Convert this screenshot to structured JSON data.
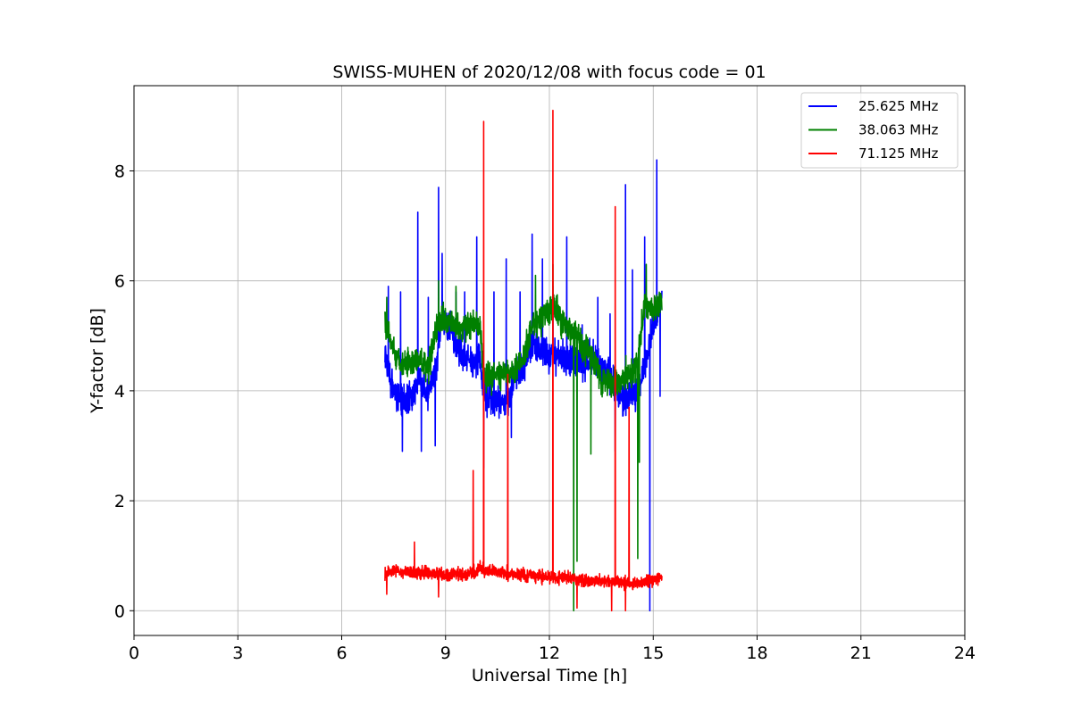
{
  "chart_data": {
    "type": "line",
    "title": "SWISS-MUHEN of 2020/12/08 with focus code = 01",
    "xlabel": "Universal Time [h]",
    "ylabel": "Y-factor [dB]",
    "xlim": [
      0,
      24
    ],
    "ylim": [
      -0.45,
      9.55
    ],
    "xticks": [
      0,
      3,
      6,
      9,
      12,
      15,
      18,
      21,
      24
    ],
    "yticks": [
      0,
      2,
      4,
      6,
      8
    ],
    "grid": true,
    "legend_position": "top-right",
    "series": [
      {
        "name": "25.625 MHz",
        "color": "#0000ff",
        "noise": 0.45,
        "points": [
          [
            7.25,
            4.6
          ],
          [
            7.5,
            4.0
          ],
          [
            7.75,
            3.8
          ],
          [
            8.0,
            3.9
          ],
          [
            8.25,
            4.2
          ],
          [
            8.5,
            3.9
          ],
          [
            8.75,
            4.5
          ],
          [
            8.9,
            5.4
          ],
          [
            9.25,
            5.0
          ],
          [
            9.5,
            4.6
          ],
          [
            9.75,
            4.5
          ],
          [
            10.0,
            4.6
          ],
          [
            10.1,
            3.9
          ],
          [
            10.5,
            3.8
          ],
          [
            10.8,
            3.8
          ],
          [
            11.0,
            4.3
          ],
          [
            11.25,
            4.4
          ],
          [
            11.5,
            4.9
          ],
          [
            11.75,
            4.7
          ],
          [
            12.0,
            4.6
          ],
          [
            12.25,
            4.7
          ],
          [
            12.5,
            4.5
          ],
          [
            12.75,
            4.6
          ],
          [
            13.0,
            4.5
          ],
          [
            13.25,
            4.6
          ],
          [
            13.5,
            4.4
          ],
          [
            13.75,
            4.3
          ],
          [
            14.0,
            3.9
          ],
          [
            14.25,
            3.8
          ],
          [
            14.5,
            4.0
          ],
          [
            14.75,
            4.4
          ],
          [
            15.0,
            5.3
          ],
          [
            15.25,
            5.6
          ]
        ],
        "spikes": [
          [
            7.35,
            5.9
          ],
          [
            7.7,
            5.8
          ],
          [
            8.2,
            7.25
          ],
          [
            8.5,
            5.7
          ],
          [
            8.8,
            7.7
          ],
          [
            8.9,
            6.5
          ],
          [
            9.3,
            5.8
          ],
          [
            9.55,
            5.8
          ],
          [
            9.9,
            6.8
          ],
          [
            10.1,
            8.35
          ],
          [
            10.4,
            5.8
          ],
          [
            10.75,
            6.4
          ],
          [
            11.15,
            5.8
          ],
          [
            11.5,
            6.85
          ],
          [
            11.8,
            6.4
          ],
          [
            12.1,
            5.9
          ],
          [
            12.5,
            6.8
          ],
          [
            12.95,
            5.2
          ],
          [
            13.4,
            5.7
          ],
          [
            13.75,
            5.4
          ],
          [
            14.2,
            7.75
          ],
          [
            14.4,
            6.2
          ],
          [
            14.75,
            6.8
          ],
          [
            15.1,
            8.2
          ],
          [
            15.2,
            7.1
          ]
        ],
        "dips": [
          [
            7.75,
            2.9
          ],
          [
            8.3,
            2.9
          ],
          [
            8.7,
            3.0
          ],
          [
            10.1,
            2.6
          ],
          [
            10.9,
            3.15
          ],
          [
            13.9,
            2.9
          ],
          [
            14.9,
            0.0
          ],
          [
            15.2,
            3.9
          ]
        ]
      },
      {
        "name": "38.063 MHz",
        "color": "#008000",
        "noise": 0.38,
        "points": [
          [
            7.25,
            5.3
          ],
          [
            7.5,
            4.7
          ],
          [
            7.75,
            4.5
          ],
          [
            8.0,
            4.5
          ],
          [
            8.25,
            4.6
          ],
          [
            8.5,
            4.4
          ],
          [
            8.75,
            5.2
          ],
          [
            9.0,
            5.3
          ],
          [
            9.25,
            5.2
          ],
          [
            9.5,
            5.1
          ],
          [
            9.75,
            5.2
          ],
          [
            10.0,
            5.2
          ],
          [
            10.1,
            4.2
          ],
          [
            10.5,
            4.3
          ],
          [
            10.8,
            4.3
          ],
          [
            11.0,
            4.4
          ],
          [
            11.25,
            4.6
          ],
          [
            11.5,
            5.2
          ],
          [
            11.75,
            5.3
          ],
          [
            12.0,
            5.5
          ],
          [
            12.25,
            5.4
          ],
          [
            12.5,
            5.1
          ],
          [
            12.75,
            5.0
          ],
          [
            13.0,
            4.8
          ],
          [
            13.25,
            4.6
          ],
          [
            13.5,
            4.2
          ],
          [
            13.75,
            4.1
          ],
          [
            14.0,
            4.2
          ],
          [
            14.25,
            4.3
          ],
          [
            14.5,
            4.4
          ],
          [
            14.75,
            5.6
          ],
          [
            15.0,
            5.5
          ],
          [
            15.25,
            5.6
          ]
        ],
        "spikes": [
          [
            7.3,
            5.7
          ],
          [
            8.8,
            6.0
          ],
          [
            9.3,
            5.9
          ],
          [
            11.6,
            6.1
          ],
          [
            12.1,
            6.3
          ],
          [
            14.8,
            6.3
          ]
        ],
        "dips": [
          [
            12.7,
            0.0
          ],
          [
            12.8,
            0.9
          ],
          [
            13.2,
            2.85
          ],
          [
            14.55,
            0.95
          ],
          [
            14.6,
            2.7
          ]
        ]
      },
      {
        "name": "71.125 MHz",
        "color": "#ff0000",
        "noise": 0.17,
        "points": [
          [
            7.25,
            0.65
          ],
          [
            7.5,
            0.75
          ],
          [
            8.0,
            0.7
          ],
          [
            8.5,
            0.7
          ],
          [
            9.0,
            0.65
          ],
          [
            9.5,
            0.65
          ],
          [
            10.0,
            0.75
          ],
          [
            10.5,
            0.72
          ],
          [
            11.0,
            0.65
          ],
          [
            11.5,
            0.65
          ],
          [
            12.0,
            0.6
          ],
          [
            12.5,
            0.62
          ],
          [
            13.0,
            0.55
          ],
          [
            13.5,
            0.55
          ],
          [
            14.0,
            0.52
          ],
          [
            14.5,
            0.5
          ],
          [
            15.0,
            0.55
          ],
          [
            15.25,
            0.6
          ]
        ],
        "spikes": [
          [
            7.3,
            1.9
          ],
          [
            8.1,
            1.25
          ],
          [
            8.8,
            6.6
          ],
          [
            9.8,
            2.55
          ],
          [
            10.1,
            8.9
          ],
          [
            10.8,
            4.3
          ],
          [
            12.1,
            9.1
          ],
          [
            13.9,
            7.35
          ],
          [
            14.3,
            3.7
          ]
        ],
        "dips": [
          [
            7.3,
            0.3
          ],
          [
            8.8,
            0.25
          ],
          [
            12.8,
            0.05
          ],
          [
            13.8,
            0.0
          ],
          [
            14.2,
            0.0
          ]
        ]
      }
    ]
  }
}
